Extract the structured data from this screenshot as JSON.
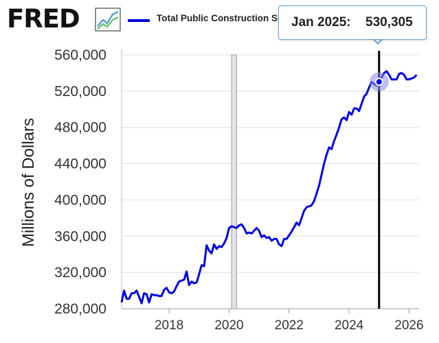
{
  "header": {
    "logo_text": "FRED",
    "legend_label": "Total Public Construction Spending: Total Construction in the United States",
    "legend_color": "#0000e0",
    "brand_icon": "fred-chart-icon"
  },
  "tooltip": {
    "date": "Jan 2025:",
    "value": "530,305"
  },
  "chart_data": {
    "type": "line",
    "title": "",
    "ylabel": "Millions of Dollars",
    "xlabel": "",
    "ylim": [
      280000,
      560000
    ],
    "xlim": [
      "2016-06",
      "2026-05"
    ],
    "yticks": [
      "280,000",
      "320,000",
      "360,000",
      "400,000",
      "440,000",
      "480,000",
      "520,000",
      "560,000"
    ],
    "xticks": [
      "2018",
      "2020",
      "2022",
      "2024",
      "2026"
    ],
    "grid": "horizontal",
    "recession_shading": [
      "2020-02",
      "2020-04"
    ],
    "cursor_date": "2025-01",
    "series": [
      {
        "color": "#0000e0",
        "x": [
          "2016-06",
          "2016-07",
          "2016-08",
          "2016-09",
          "2016-10",
          "2016-11",
          "2016-12",
          "2017-01",
          "2017-02",
          "2017-03",
          "2017-04",
          "2017-05",
          "2017-06",
          "2017-07",
          "2017-08",
          "2017-09",
          "2017-10",
          "2017-11",
          "2017-12",
          "2018-01",
          "2018-02",
          "2018-03",
          "2018-04",
          "2018-05",
          "2018-06",
          "2018-07",
          "2018-08",
          "2018-09",
          "2018-10",
          "2018-11",
          "2018-12",
          "2019-01",
          "2019-02",
          "2019-03",
          "2019-04",
          "2019-05",
          "2019-06",
          "2019-07",
          "2019-08",
          "2019-09",
          "2019-10",
          "2019-11",
          "2019-12",
          "2020-01",
          "2020-02",
          "2020-03",
          "2020-04",
          "2020-05",
          "2020-06",
          "2020-07",
          "2020-08",
          "2020-09",
          "2020-10",
          "2020-11",
          "2020-12",
          "2021-01",
          "2021-02",
          "2021-03",
          "2021-04",
          "2021-05",
          "2021-06",
          "2021-07",
          "2021-08",
          "2021-09",
          "2021-10",
          "2021-11",
          "2021-12",
          "2022-01",
          "2022-02",
          "2022-03",
          "2022-04",
          "2022-05",
          "2022-06",
          "2022-07",
          "2022-08",
          "2022-09",
          "2022-10",
          "2022-11",
          "2022-12",
          "2023-01",
          "2023-02",
          "2023-03",
          "2023-04",
          "2023-05",
          "2023-06",
          "2023-07",
          "2023-08",
          "2023-09",
          "2023-10",
          "2023-11",
          "2023-12",
          "2024-01",
          "2024-02",
          "2024-03",
          "2024-04",
          "2024-05",
          "2024-06",
          "2024-07",
          "2024-08",
          "2024-09",
          "2024-10",
          "2024-11",
          "2024-12",
          "2025-01",
          "2025-02",
          "2025-03",
          "2025-04",
          "2025-05",
          "2025-06",
          "2025-07",
          "2025-08",
          "2025-09",
          "2025-10",
          "2025-11",
          "2025-12",
          "2026-01",
          "2026-02",
          "2026-03",
          "2026-04"
        ],
        "values": [
          287000,
          300000,
          291000,
          291000,
          297000,
          297000,
          300000,
          293000,
          286000,
          297000,
          296000,
          287000,
          296000,
          295000,
          295000,
          294000,
          294000,
          301000,
          303000,
          298000,
          297000,
          299000,
          305000,
          310000,
          311000,
          312000,
          321000,
          306000,
          310000,
          308000,
          309000,
          318000,
          328000,
          327000,
          350000,
          344000,
          341000,
          351000,
          346000,
          349000,
          348000,
          352000,
          358000,
          369000,
          371000,
          370000,
          369000,
          372000,
          373000,
          369000,
          363000,
          364000,
          363000,
          366000,
          369000,
          366000,
          359000,
          361000,
          358000,
          359000,
          355000,
          357000,
          357000,
          351000,
          349000,
          357000,
          357000,
          361000,
          365000,
          370000,
          375000,
          372000,
          380000,
          388000,
          392000,
          393000,
          394000,
          399000,
          407000,
          416000,
          428000,
          440000,
          450000,
          458000,
          456000,
          465000,
          472000,
          480000,
          489000,
          491000,
          488000,
          497000,
          494000,
          501000,
          501000,
          498000,
          506000,
          514000,
          517000,
          524000,
          530000,
          528000,
          526000,
          530305,
          535000,
          540000,
          542000,
          538000,
          533000,
          533000,
          533000,
          539000,
          540000,
          538000,
          533000,
          533000,
          534000,
          535000,
          538000
        ]
      }
    ]
  }
}
